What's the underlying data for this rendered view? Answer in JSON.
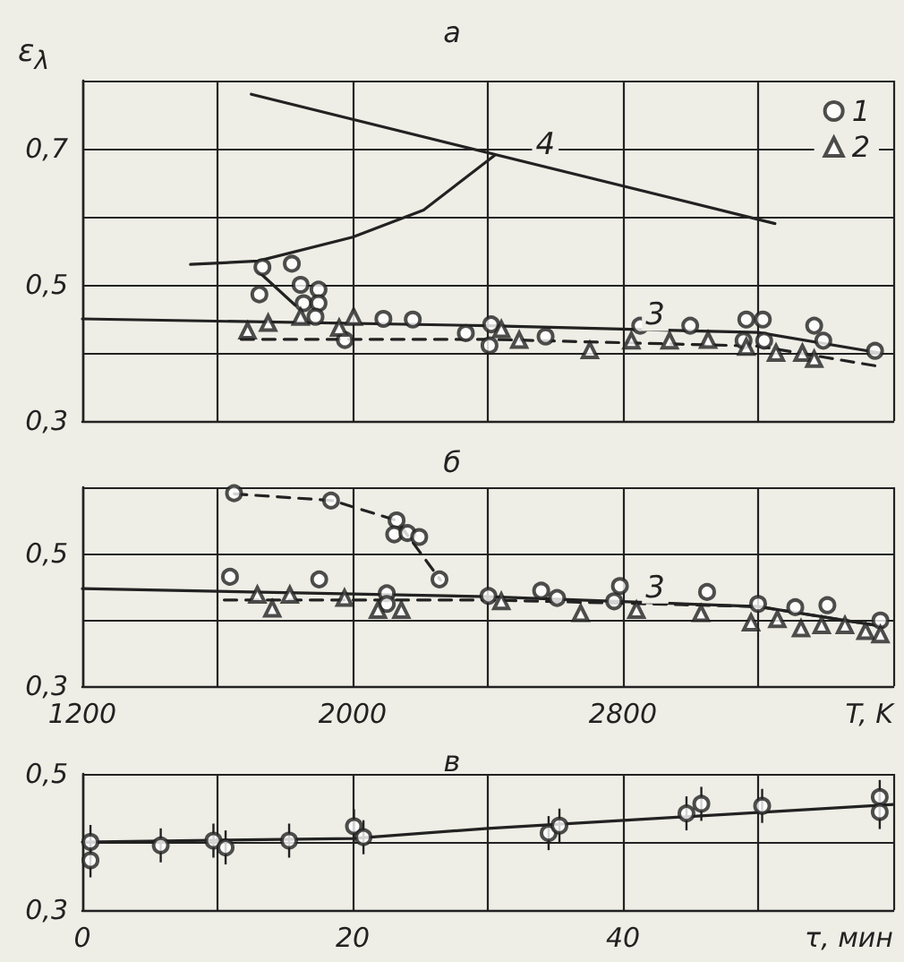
{
  "chart_data": [
    {
      "type": "scatter",
      "title": "а",
      "ylabel": "ε$_{λ}$",
      "xlim": [
        1200,
        3600
      ],
      "ylim": [
        0.3,
        0.8
      ],
      "xticks": [
        {
          "value": 1200,
          "label": null
        },
        {
          "value": 1600,
          "label": null
        },
        {
          "value": 2000,
          "label": null
        },
        {
          "value": 2400,
          "label": null
        },
        {
          "value": 2800,
          "label": null
        },
        {
          "value": 3200,
          "label": null
        },
        {
          "value": 3600,
          "label": null
        }
      ],
      "yticks": [
        {
          "value": 0.3,
          "label": "0,3"
        },
        {
          "value": 0.4,
          "label": null
        },
        {
          "value": 0.5,
          "label": "0,5"
        },
        {
          "value": 0.6,
          "label": null
        },
        {
          "value": 0.7,
          "label": "0,7"
        },
        {
          "value": 0.8,
          "label": null
        }
      ],
      "tick_labels": "y",
      "grid": true,
      "legend": "top right",
      "series": [
        {
          "type": "line",
          "name": "4",
          "color": "#222222",
          "x": [
            1700,
            3250
          ],
          "values": [
            0.78,
            0.59
          ]
        },
        {
          "type": "line",
          "color": "#222222",
          "x": [
            1520,
            1720,
            2000,
            2210,
            2420
          ],
          "values": [
            0.53,
            0.535,
            0.57,
            0.61,
            0.69
          ]
        },
        {
          "type": "line",
          "color": "#222222",
          "x": [
            1720,
            1830
          ],
          "values": [
            0.52,
            0.47
          ]
        },
        {
          "type": "line",
          "name": "3",
          "color": "#222222",
          "x": [
            1200,
            2400,
            3200,
            3560
          ],
          "values": [
            0.45,
            0.44,
            0.43,
            0.4
          ]
        },
        {
          "type": "line",
          "color": "#222222",
          "line_style": "dashed",
          "x": [
            1670,
            2400,
            3200,
            3560
          ],
          "values": [
            0.42,
            0.42,
            0.41,
            0.38
          ]
        },
        {
          "name": "1",
          "color": "#222222",
          "marker": "circle",
          "x": [
            1733,
            1724,
            1820,
            1846,
            1899,
            1855,
            1899,
            1890,
            1977,
            2091,
            2178,
            2335,
            2410,
            2405,
            2571,
            2851,
            2999,
            3165,
            3214,
            3157,
            3218,
            3366,
            3393,
            3546
          ],
          "values": [
            0.526,
            0.486,
            0.531,
            0.5,
            0.493,
            0.473,
            0.473,
            0.453,
            0.419,
            0.45,
            0.449,
            0.429,
            0.442,
            0.411,
            0.424,
            0.44,
            0.44,
            0.449,
            0.449,
            0.418,
            0.418,
            0.44,
            0.418,
            0.403
          ]
        },
        {
          "name": "2",
          "color": "#222222",
          "marker": "triangle",
          "x": [
            1689,
            1750,
            1846,
            1960,
            2003,
            2440,
            2493,
            2702,
            2825,
            2938,
            3052,
            3165,
            3253,
            3331,
            3366
          ],
          "values": [
            0.433,
            0.444,
            0.453,
            0.437,
            0.453,
            0.435,
            0.419,
            0.404,
            0.418,
            0.418,
            0.419,
            0.409,
            0.4,
            0.4,
            0.391
          ]
        }
      ]
    },
    {
      "type": "scatter",
      "title": "б",
      "xlabel": "T, K",
      "xlim": [
        1200,
        3600
      ],
      "ylim": [
        0.3,
        0.6
      ],
      "xticks": [
        {
          "value": 1200,
          "label": "1200"
        },
        {
          "value": 1600,
          "label": null
        },
        {
          "value": 2000,
          "label": "2000"
        },
        {
          "value": 2400,
          "label": null
        },
        {
          "value": 2800,
          "label": "2800"
        },
        {
          "value": 3200,
          "label": null
        },
        {
          "value": 3600,
          "label": null
        }
      ],
      "yticks": [
        {
          "value": 0.3,
          "label": "0,3"
        },
        {
          "value": 0.4,
          "label": null
        },
        {
          "value": 0.5,
          "label": "0,5"
        },
        {
          "value": 0.6,
          "label": null
        }
      ],
      "grid": true,
      "series": [
        {
          "type": "line",
          "color": "#222222",
          "line_style": "dashed",
          "x": [
            1650,
            1940,
            2130,
            2260
          ],
          "values": [
            0.59,
            0.58,
            0.55,
            0.46
          ]
        },
        {
          "type": "line",
          "name": "3",
          "color": "#222222",
          "x": [
            1200,
            2400,
            3200,
            3570
          ],
          "values": [
            0.447,
            0.435,
            0.42,
            0.39
          ]
        },
        {
          "type": "line",
          "color": "#222222",
          "line_style": "dashed",
          "x": [
            1620,
            2400,
            3200,
            3570
          ],
          "values": [
            0.43,
            0.43,
            0.42,
            0.39
          ]
        },
        {
          "color": "#222222",
          "marker": "circle",
          "x": [
            1649,
            1936,
            2130,
            2123,
            2162,
            2197,
            2257,
            1637,
            1901,
            2101,
            2101,
            2402,
            2558,
            2605,
            2791,
            2774,
            3049,
            3200,
            3310,
            3405,
            3562
          ],
          "values": [
            0.591,
            0.58,
            0.55,
            0.529,
            0.531,
            0.525,
            0.461,
            0.465,
            0.461,
            0.44,
            0.424,
            0.436,
            0.444,
            0.433,
            0.451,
            0.428,
            0.442,
            0.424,
            0.419,
            0.422,
            0.399
          ]
        },
        {
          "color": "#222222",
          "marker": "triangle",
          "x": [
            1718,
            1762,
            1814,
            1976,
            2075,
            2144,
            2440,
            2675,
            2840,
            3031,
            3179,
            3257,
            3327,
            3388,
            3457,
            3518,
            3562
          ],
          "values": [
            0.438,
            0.417,
            0.438,
            0.433,
            0.415,
            0.415,
            0.428,
            0.41,
            0.415,
            0.41,
            0.396,
            0.401,
            0.387,
            0.392,
            0.392,
            0.383,
            0.378
          ]
        }
      ]
    },
    {
      "type": "scatter",
      "title": "в",
      "xlabel": "τ, мин",
      "xlim": [
        0,
        60
      ],
      "ylim": [
        0.3,
        0.5
      ],
      "xticks": [
        {
          "value": 0,
          "label": "0"
        },
        {
          "value": 10,
          "label": null
        },
        {
          "value": 20,
          "label": "20"
        },
        {
          "value": 30,
          "label": null
        },
        {
          "value": 40,
          "label": "40"
        },
        {
          "value": 50,
          "label": null
        },
        {
          "value": 60,
          "label": null
        }
      ],
      "yticks": [
        {
          "value": 0.3,
          "label": "0,3"
        },
        {
          "value": 0.4,
          "label": null
        },
        {
          "value": 0.5,
          "label": "0,5"
        }
      ],
      "grid": true,
      "series": [
        {
          "type": "line",
          "color": "#222222",
          "x": [
            0,
            20,
            30,
            60
          ],
          "values": [
            0.4,
            0.405,
            0.42,
            0.455
          ]
        },
        {
          "color": "#222222",
          "marker": "circle",
          "x": [
            0.6,
            0.6,
            5.8,
            9.7,
            10.6,
            15.3,
            20.1,
            20.8,
            34.5,
            35.3,
            44.7,
            45.8,
            50.3,
            59,
            59
          ],
          "values": [
            0.4,
            0.373,
            0.395,
            0.402,
            0.392,
            0.402,
            0.423,
            0.407,
            0.413,
            0.424,
            0.442,
            0.456,
            0.453,
            0.466,
            0.444
          ],
          "errors": [
            0.025,
            0.025,
            0.025,
            0.025,
            0.025,
            0.025,
            0.025,
            0.025,
            0.025,
            0.025,
            0.025,
            0.025,
            0.025,
            0.025,
            0.025
          ]
        }
      ]
    }
  ]
}
